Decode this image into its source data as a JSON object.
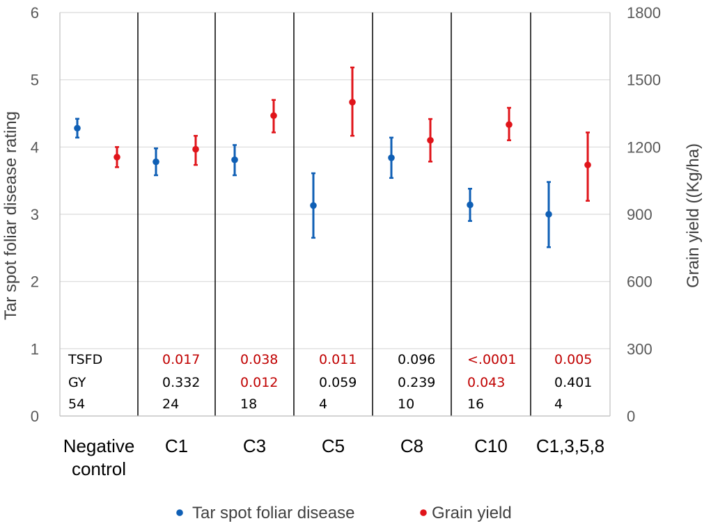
{
  "chart_data": {
    "type": "scatter",
    "categories": [
      "Negative control",
      "C1",
      "C3",
      "C5",
      "C8",
      "C10",
      "C1,3,5,8"
    ],
    "category_lines": [
      [
        "Negative",
        "control"
      ],
      [
        "C1"
      ],
      [
        "C3"
      ],
      [
        "C5"
      ],
      [
        "C8"
      ],
      [
        "C10"
      ],
      [
        "C1,3,5,8"
      ]
    ],
    "y_left": {
      "label": "Tar spot foliar disease rating",
      "min": 0,
      "max": 6,
      "ticks": [
        "0",
        "1",
        "2",
        "3",
        "4",
        "5",
        "6"
      ]
    },
    "y_right": {
      "label": "Grain yield ((Kg/ha)",
      "min": 0,
      "max": 1800,
      "ticks": [
        "0",
        "300",
        "600",
        "900",
        "1200",
        "1500",
        "1800"
      ]
    },
    "series": [
      {
        "name": "Tar spot foliar disease",
        "axis": "left",
        "color": "#0F5FB5",
        "values": [
          4.28,
          3.78,
          3.81,
          3.13,
          3.84,
          3.14,
          3.0
        ],
        "lower": [
          4.14,
          3.58,
          3.58,
          2.65,
          3.54,
          2.9,
          2.51
        ],
        "upper": [
          4.42,
          3.98,
          4.03,
          3.61,
          4.14,
          3.38,
          3.48
        ]
      },
      {
        "name": "Grain yield",
        "axis": "right",
        "color": "#E0141A",
        "values": [
          1155,
          1190,
          1340,
          1400,
          1230,
          1300,
          1120
        ],
        "lower": [
          1110,
          1120,
          1265,
          1250,
          1135,
          1230,
          960
        ],
        "upper": [
          1200,
          1250,
          1410,
          1555,
          1325,
          1375,
          1265
        ]
      }
    ],
    "row_labels": [
      "TSFD",
      "GY"
    ],
    "table": {
      "tsfd": [
        {
          "text": "0.017",
          "color": "#C00000"
        },
        {
          "text": "0.038",
          "color": "#C00000"
        },
        {
          "text": "0.011",
          "color": "#C00000"
        },
        {
          "text": "0.096",
          "color": "#000000"
        },
        {
          "text": "<.0001",
          "color": "#C00000"
        },
        {
          "text": "0.005",
          "color": "#C00000"
        }
      ],
      "gy": [
        {
          "text": "0.332",
          "color": "#000000"
        },
        {
          "text": "0.012",
          "color": "#C00000"
        },
        {
          "text": "0.059",
          "color": "#000000"
        },
        {
          "text": "0.239",
          "color": "#000000"
        },
        {
          "text": "0.043",
          "color": "#C00000"
        },
        {
          "text": "0.401",
          "color": "#000000"
        }
      ],
      "n": [
        "54",
        "24",
        "18",
        "4",
        "10",
        "16",
        "4"
      ]
    },
    "legend": [
      {
        "label": "Tar spot foliar disease",
        "color": "#0F5FB5"
      },
      {
        "label": "Grain yield",
        "color": "#E0141A"
      }
    ]
  }
}
